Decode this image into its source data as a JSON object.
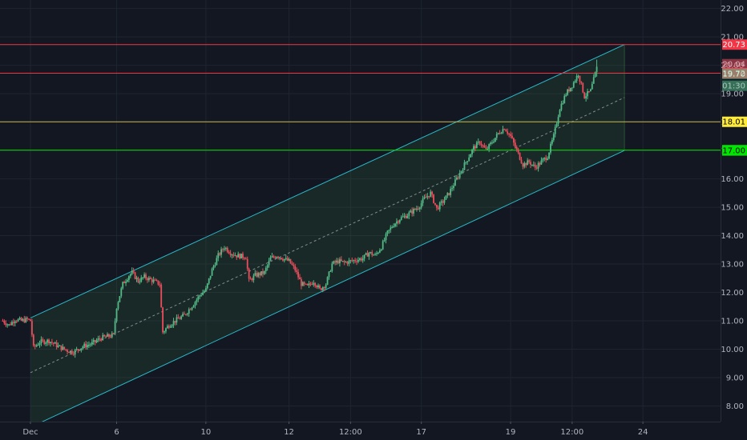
{
  "chart_data": {
    "type": "candlestick",
    "colors": {
      "background": "#131722",
      "up_candle": "#53b987",
      "down_candle": "#eb4d5c",
      "channel_line": "#2ab7c8",
      "channel_fill": "rgba(76,175,80,0.12)",
      "grid": "#1f2430",
      "axis_text": "#b2b5be"
    },
    "x_axis": {
      "tick_labels": [
        "Dec",
        "6",
        "10",
        "12",
        "12:00",
        "17",
        "19",
        "12:00",
        "24"
      ],
      "tick_index": [
        0,
        28,
        57,
        84,
        104,
        127,
        156,
        176,
        199
      ]
    },
    "y_axis": {
      "ylim": [
        7.45,
        22.3
      ],
      "ticks": [
        8.0,
        9.0,
        10.0,
        11.0,
        12.0,
        13.0,
        14.0,
        15.0,
        16.0,
        17.0,
        18.0,
        19.0,
        20.0,
        21.0,
        22.0
      ],
      "tick_labels": [
        "8.00",
        "9.00",
        "10.00",
        "11.00",
        "12.00",
        "13.00",
        "14.00",
        "15.00",
        "16.00",
        "17.00",
        "18.00",
        "19.00",
        "20.00",
        "21.00",
        "22.00"
      ]
    },
    "horizontal_levels": [
      {
        "value": 20.73,
        "label": "20.73",
        "color": "#f23645",
        "text_color": "#ffffff"
      },
      {
        "value": 19.72,
        "label": "19.72",
        "color": "#f23645",
        "text_color": "#ffffff"
      },
      {
        "value": 18.01,
        "label": "18.01",
        "color": "#c8b84a",
        "text_color": "#000000",
        "badge_color": "#ffeb3b"
      },
      {
        "value": 17.01,
        "label": "17.01",
        "color": "#00e600",
        "text_color": "#000000"
      }
    ],
    "price_badges": [
      {
        "value": 20.04,
        "label": "20.04",
        "color": "#eb4d5c",
        "text_color": "#ffffff",
        "faded": true
      },
      {
        "value": 19.7,
        "label": "19.70",
        "color": "#53b987",
        "text_color": "#ffffff",
        "faded": true
      },
      {
        "value": 19.28,
        "label": "01:30",
        "color": "#53b987",
        "text_color": "#ffffff",
        "faded": true
      },
      {
        "value": 17.0,
        "label": "17.00",
        "color": "#00e600",
        "text_color": "#000000"
      }
    ],
    "channel": {
      "start_index": 0,
      "end_index": 193,
      "upper_start": 11.1,
      "upper_end": 20.73,
      "lower_start": 7.25,
      "lower_end": 17.0
    },
    "candles_count": 200,
    "close_path": [
      [
        -9,
        11.0
      ],
      [
        -7,
        10.85
      ],
      [
        -5,
        11.05
      ],
      [
        -3,
        11.0
      ],
      [
        -1,
        11.05
      ],
      [
        0,
        11.0
      ],
      [
        1,
        10.05
      ],
      [
        3,
        10.25
      ],
      [
        6,
        10.3
      ],
      [
        9,
        10.1
      ],
      [
        12,
        9.95
      ],
      [
        14,
        9.9
      ],
      [
        17,
        10.1
      ],
      [
        20,
        10.2
      ],
      [
        23,
        10.4
      ],
      [
        25,
        10.45
      ],
      [
        27,
        10.5
      ],
      [
        28,
        11.5
      ],
      [
        30,
        12.3
      ],
      [
        32,
        12.6
      ],
      [
        33,
        12.7
      ],
      [
        35,
        12.4
      ],
      [
        37,
        12.55
      ],
      [
        40,
        12.4
      ],
      [
        42,
        12.3
      ],
      [
        43,
        10.6
      ],
      [
        45,
        10.85
      ],
      [
        47,
        11.0
      ],
      [
        50,
        11.2
      ],
      [
        53,
        11.6
      ],
      [
        55,
        11.9
      ],
      [
        57,
        12.1
      ],
      [
        59,
        12.8
      ],
      [
        61,
        13.3
      ],
      [
        63,
        13.6
      ],
      [
        65,
        13.4
      ],
      [
        67,
        13.3
      ],
      [
        70,
        13.25
      ],
      [
        71,
        12.4
      ],
      [
        73,
        12.6
      ],
      [
        76,
        12.7
      ],
      [
        78,
        13.2
      ],
      [
        80,
        13.3
      ],
      [
        82,
        13.2
      ],
      [
        84,
        13.1
      ],
      [
        86,
        12.8
      ],
      [
        88,
        12.3
      ],
      [
        90,
        12.2
      ],
      [
        92,
        12.4
      ],
      [
        94,
        12.1
      ],
      [
        96,
        12.3
      ],
      [
        98,
        13.0
      ],
      [
        100,
        13.1
      ],
      [
        102,
        13.05
      ],
      [
        104,
        13.1
      ],
      [
        106,
        13.15
      ],
      [
        108,
        13.2
      ],
      [
        110,
        13.4
      ],
      [
        112,
        13.3
      ],
      [
        114,
        13.6
      ],
      [
        116,
        14.1
      ],
      [
        118,
        14.4
      ],
      [
        120,
        14.6
      ],
      [
        122,
        14.7
      ],
      [
        124,
        14.85
      ],
      [
        126,
        15.0
      ],
      [
        128,
        15.3
      ],
      [
        130,
        15.5
      ],
      [
        132,
        14.95
      ],
      [
        134,
        15.2
      ],
      [
        136,
        15.5
      ],
      [
        138,
        15.9
      ],
      [
        140,
        16.3
      ],
      [
        142,
        16.7
      ],
      [
        144,
        17.1
      ],
      [
        146,
        17.3
      ],
      [
        148,
        17.0
      ],
      [
        150,
        17.3
      ],
      [
        152,
        17.6
      ],
      [
        154,
        17.8
      ],
      [
        156,
        17.5
      ],
      [
        158,
        17.0
      ],
      [
        160,
        16.5
      ],
      [
        162,
        16.6
      ],
      [
        164,
        16.4
      ],
      [
        166,
        16.6
      ],
      [
        168,
        16.8
      ],
      [
        170,
        17.5
      ],
      [
        172,
        18.5
      ],
      [
        174,
        19.0
      ],
      [
        176,
        19.3
      ],
      [
        178,
        19.7
      ],
      [
        179,
        19.3
      ],
      [
        180,
        18.9
      ],
      [
        182,
        19.1
      ],
      [
        184,
        19.9
      ]
    ]
  }
}
